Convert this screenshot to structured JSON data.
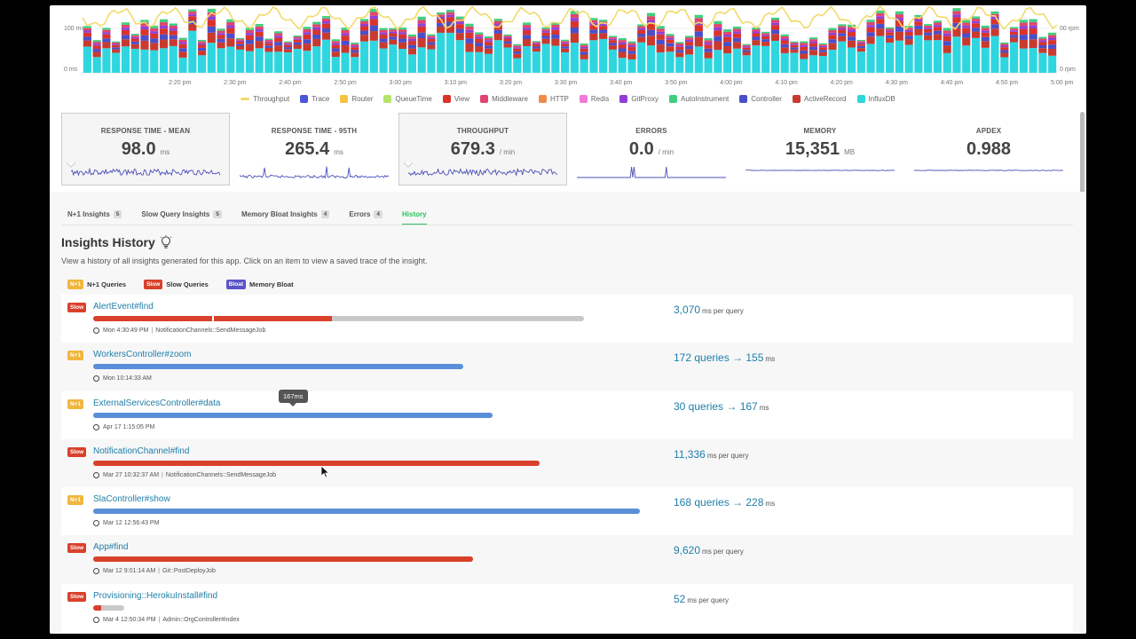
{
  "chart": {
    "y_left_ticks": [
      "100 ms",
      "0 ms"
    ],
    "y_right_ticks": [
      "00 rpm",
      "0 rpm"
    ],
    "x_ticks": [
      "2:20 pm",
      "2:30 pm",
      "2:40 pm",
      "2:50 pm",
      "3:00 pm",
      "3:10 pm",
      "3:20 pm",
      "3:30 pm",
      "3:40 pm",
      "3:50 pm",
      "4:00 pm",
      "4:10 pm",
      "4:20 pm",
      "4:30 pm",
      "4:40 pm",
      "4:50 pm",
      "5:00 pm"
    ],
    "legend": [
      {
        "label": "Throughput",
        "color": "#f2da6a",
        "kind": "line"
      },
      {
        "label": "Trace",
        "color": "#4b57d8",
        "kind": "box"
      },
      {
        "label": "Router",
        "color": "#f5c342",
        "kind": "box"
      },
      {
        "label": "QueueTime",
        "color": "#b5e36a",
        "kind": "box"
      },
      {
        "label": "View",
        "color": "#d9332b",
        "kind": "box"
      },
      {
        "label": "Middleware",
        "color": "#e0456f",
        "kind": "box"
      },
      {
        "label": "HTTP",
        "color": "#f08c48",
        "kind": "box"
      },
      {
        "label": "Redis",
        "color": "#f07ad8",
        "kind": "box"
      },
      {
        "label": "GitProxy",
        "color": "#8e3fd9",
        "kind": "box"
      },
      {
        "label": "AutoInstrument",
        "color": "#3fcf7f",
        "kind": "box"
      },
      {
        "label": "Controller",
        "color": "#4a4fc9",
        "kind": "box"
      },
      {
        "label": "ActiveRecord",
        "color": "#c93a2e",
        "kind": "box"
      },
      {
        "label": "InfluxDB",
        "color": "#2fd6e0",
        "kind": "box"
      }
    ]
  },
  "metrics": [
    {
      "label": "RESPONSE TIME - MEAN",
      "value": "98.0",
      "unit": "ms",
      "selected": true
    },
    {
      "label": "RESPONSE TIME - 95TH",
      "value": "265.4",
      "unit": "ms",
      "selected": false
    },
    {
      "label": "THROUGHPUT",
      "value": "679.3",
      "unit": "/ min",
      "selected": true
    },
    {
      "label": "ERRORS",
      "value": "0.0",
      "unit": "/ min",
      "selected": false
    },
    {
      "label": "MEMORY",
      "value": "15,351",
      "unit": "MB",
      "selected": false
    },
    {
      "label": "APDEX",
      "value": "0.988",
      "unit": "",
      "selected": false
    }
  ],
  "tabs": [
    {
      "label": "N+1 Insights",
      "count": "5",
      "active": false
    },
    {
      "label": "Slow Query Insights",
      "count": "5",
      "active": false
    },
    {
      "label": "Memory Bloat Insights",
      "count": "4",
      "active": false
    },
    {
      "label": "Errors",
      "count": "4",
      "active": false
    },
    {
      "label": "History",
      "count": "",
      "active": true
    }
  ],
  "section": {
    "title": "Insights History",
    "description": "View a history of all insights generated for this app. Click on an item to view a saved trace of the insight."
  },
  "key": [
    {
      "badge": "N+1",
      "kind": "nplus",
      "label": "N+1 Queries"
    },
    {
      "badge": "Slow",
      "kind": "slow",
      "label": "Slow Queries"
    },
    {
      "badge": "Bloat",
      "kind": "bloat",
      "label": "Memory Bloat"
    }
  ],
  "rows": [
    {
      "badge": "Slow",
      "kind": "slow",
      "name": "AlertEvent#find",
      "time": "Mon 4:30:49 PM",
      "job": "NotificationChannels::SendMessageJob",
      "stat_main": "3,070",
      "stat_arrow": "",
      "stat_unit": "ms per query",
      "bar_track_width": 0.485,
      "bar_fill": 0.487,
      "bar_split": true
    },
    {
      "badge": "N+1",
      "kind": "nplus",
      "name": "WorkersController#zoom",
      "time": "Mon 10:14:33 AM",
      "job": "",
      "stat_main": "172 queries",
      "stat_arrow": "→ 155",
      "stat_unit": "ms",
      "bar_track_width": 0.366,
      "bar_fill": 1.0,
      "bar_split": false
    },
    {
      "badge": "N+1",
      "kind": "nplus",
      "name": "ExternalServicesController#data",
      "time": "Apr 17 1:15:05 PM",
      "job": "",
      "stat_main": "30 queries",
      "stat_arrow": "→ 167",
      "stat_unit": "ms",
      "bar_track_width": 0.395,
      "bar_fill": 1.0,
      "bar_split": false
    },
    {
      "badge": "Slow",
      "kind": "slow",
      "name": "NotificationChannel#find",
      "time": "Mar 27 10:32:37 AM",
      "job": "NotificationChannels::SendMessageJob",
      "stat_main": "11,336",
      "stat_arrow": "",
      "stat_unit": "ms per query",
      "bar_track_width": 0.441,
      "bar_fill": 1.0,
      "bar_split": false
    },
    {
      "badge": "N+1",
      "kind": "nplus",
      "name": "SlaController#show",
      "time": "Mar 12 12:56:43 PM",
      "job": "",
      "stat_main": "168 queries",
      "stat_arrow": "→ 228",
      "stat_unit": "ms",
      "bar_track_width": 0.54,
      "bar_fill": 1.0,
      "bar_split": false
    },
    {
      "badge": "Slow",
      "kind": "slow",
      "name": "App#find",
      "time": "Mar 12 9:01:14 AM",
      "job": "Git::PostDeployJob",
      "stat_main": "9,620",
      "stat_arrow": "",
      "stat_unit": "ms per query",
      "bar_track_width": 0.375,
      "bar_fill": 1.0,
      "bar_split": false
    },
    {
      "badge": "Slow",
      "kind": "slow",
      "name": "Provisioning::HerokuInstall#find",
      "time": "Mar 4 12:50:34 PM",
      "job": "Admin::OrgController#index",
      "stat_main": "52",
      "stat_arrow": "",
      "stat_unit": "ms per query",
      "bar_track_width": 0.031,
      "bar_fill": 0.25,
      "bar_split": false
    }
  ],
  "tooltip": "167ms",
  "colors": {
    "slow": "#d9402b",
    "nplus_bar": "#5b8fd9",
    "track": "#c9c9c9",
    "link": "#1f7ea8"
  }
}
